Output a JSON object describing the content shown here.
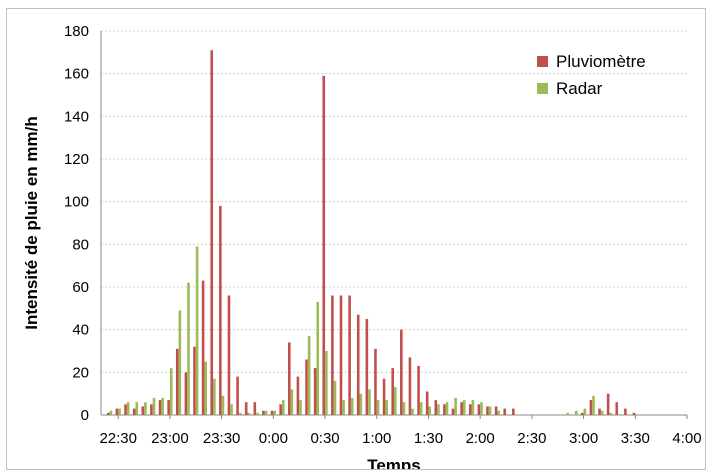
{
  "chart_data": {
    "type": "bar",
    "xlabel": "Temps",
    "ylabel": "Intensité de pluie en mm/h",
    "ylim": [
      0,
      180
    ],
    "yticks": [
      0,
      20,
      40,
      60,
      80,
      100,
      120,
      140,
      160,
      180
    ],
    "xlim": [
      "22:20",
      "4:00"
    ],
    "xticks": [
      "22:30",
      "23:00",
      "23:30",
      "0:00",
      "0:30",
      "1:00",
      "1:30",
      "2:00",
      "2:30",
      "3:00",
      "3:30",
      "4:00"
    ],
    "grid": true,
    "legend": "top-right",
    "x": [
      "22:25",
      "22:30",
      "22:35",
      "22:40",
      "22:45",
      "22:50",
      "22:55",
      "23:00",
      "23:05",
      "23:10",
      "23:15",
      "23:20",
      "23:25",
      "23:30",
      "23:35",
      "23:40",
      "23:45",
      "23:50",
      "23:55",
      "0:00",
      "0:05",
      "0:10",
      "0:15",
      "0:20",
      "0:25",
      "0:30",
      "0:35",
      "0:40",
      "0:45",
      "0:50",
      "0:55",
      "1:00",
      "1:05",
      "1:10",
      "1:15",
      "1:20",
      "1:25",
      "1:30",
      "1:35",
      "1:40",
      "1:45",
      "1:50",
      "1:55",
      "2:00",
      "2:05",
      "2:10",
      "2:15",
      "2:20",
      "2:25",
      "2:30",
      "2:35",
      "2:40",
      "2:45",
      "2:50",
      "2:55",
      "3:00",
      "3:05",
      "3:10",
      "3:15",
      "3:20",
      "3:25",
      "3:30",
      "3:35",
      "3:40",
      "3:45",
      "3:50"
    ],
    "series": [
      {
        "name": "Pluviomètre",
        "color": "#c0504d",
        "values": [
          1,
          3,
          5,
          3,
          4,
          5,
          7,
          7,
          31,
          20,
          32,
          63,
          171,
          98,
          56,
          18,
          6,
          6,
          2,
          2,
          5,
          34,
          18,
          26,
          22,
          159,
          56,
          56,
          56,
          47,
          45,
          31,
          17,
          22,
          40,
          27,
          23,
          11,
          7,
          5,
          3,
          6,
          5,
          5,
          4,
          4,
          3,
          3,
          0,
          0,
          0,
          0,
          0,
          0,
          0,
          1,
          7,
          3,
          10,
          6,
          3,
          1,
          0,
          0,
          0,
          0
        ],
        "__note": "Pluviomètre spans from 22:25; paired with radar at same slots"
      },
      {
        "name": "Radar",
        "color": "#9bbb59",
        "values": [
          2,
          3,
          6,
          6,
          6,
          8,
          8,
          22,
          49,
          62,
          79,
          25,
          17,
          9,
          5,
          1,
          1,
          1,
          2,
          2,
          7,
          12,
          7,
          37,
          53,
          30,
          16,
          7,
          8,
          10,
          12,
          7,
          7,
          13,
          6,
          3,
          6,
          4,
          5,
          6,
          8,
          7,
          7,
          6,
          4,
          2,
          0,
          0,
          0,
          0,
          0,
          0,
          0,
          1,
          2,
          3,
          9,
          2,
          1,
          0,
          0,
          0,
          0,
          0,
          0,
          0
        ]
      }
    ]
  }
}
